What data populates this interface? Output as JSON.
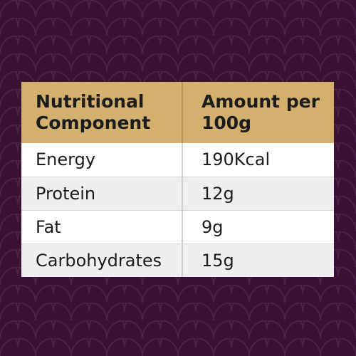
{
  "colors": {
    "background": "#3b1233",
    "pattern_line": "#4e2147",
    "header_bg": "#d3b06e",
    "row_white": "#ffffff",
    "row_grey": "#efefef",
    "text": "#1c1c1c"
  },
  "table": {
    "headers": {
      "component_line1": "Nutritional",
      "component_line2": "Component",
      "amount_line1": "Amount per",
      "amount_line2": "100g"
    },
    "rows": [
      {
        "component": "Energy",
        "amount": "190Kcal"
      },
      {
        "component": "Protein",
        "amount": "12g"
      },
      {
        "component": "Fat",
        "amount": "9g"
      },
      {
        "component": "Carbohydrates",
        "amount": "15g"
      }
    ]
  }
}
